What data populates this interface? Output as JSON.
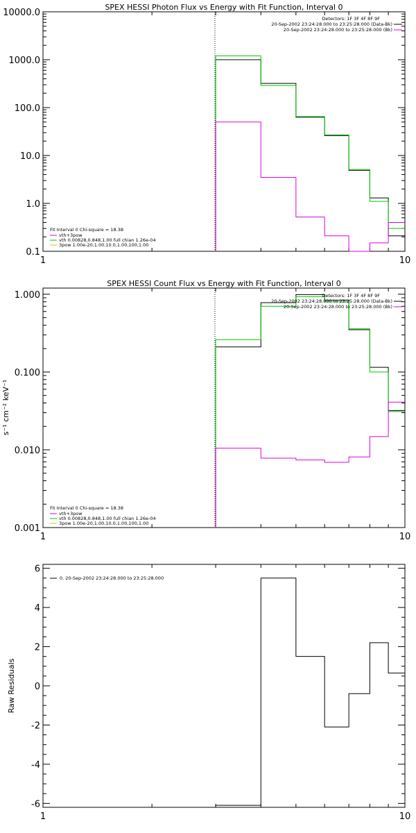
{
  "chart_data": [
    {
      "type": "line",
      "title": "SPEX HESSI Photon Flux vs Energy with Fit Function, Interval 0",
      "x_scale": "log",
      "y_scale": "log",
      "xlim": [
        1,
        10
      ],
      "ylim": [
        0.1,
        10000
      ],
      "x_tick_labels": [
        "1",
        "10"
      ],
      "y_tick_labels": [
        "0.1",
        "1.0",
        "10.0",
        "100.0",
        "1000.0",
        "10000.0"
      ],
      "marker_x": 3,
      "legend_top_right": [
        "Detectors: 1F 3F 4F 8F 9F",
        "20-Sep-2002 23:24:28.000 to 23:25:28.000 (Data-Bk)",
        "20-Sep-2002 23:24:28.000 to 23:25:28.000 (Bk)"
      ],
      "fit_info": [
        "Fit Interval 0   Chi-square = 18.38",
        "vth+3pow",
        "vth 0.00828,0.848,1.00  full chian 1.26e-04",
        "3pow 1.00e-20,1.00,10.0,1.00,100,1.00"
      ],
      "bin_edges": [
        3,
        3.5,
        4,
        4.5,
        5,
        5.5,
        6,
        6.5,
        7,
        7.5,
        8,
        8.5,
        9,
        9.5,
        10
      ],
      "series": [
        {
          "name": "20-Sep-2002 23:24:28.000 to 23:25:28.000 (Data-Bk)",
          "color": "#000000",
          "values": [
            1000,
            1000,
            320,
            320,
            63,
            63,
            26,
            26,
            4.9,
            4.9,
            1.3,
            1.3,
            0.21,
            0.21
          ]
        },
        {
          "name": "vth+3pow",
          "color": "#00cc00",
          "values": [
            1200,
            1200,
            290,
            290,
            65,
            65,
            27,
            27,
            5.1,
            5.1,
            1.1,
            1.1,
            0.3,
            0.3
          ]
        },
        {
          "name": "20-Sep-2002 23:24:28.000 to 23:25:28.000 (Bk)",
          "color": "#dd00dd",
          "values": [
            50,
            50,
            3.5,
            3.5,
            0.52,
            0.52,
            0.21,
            0.21,
            0.1,
            0.1,
            0.15,
            0.15,
            0.4,
            0.4
          ]
        }
      ]
    },
    {
      "type": "line",
      "title": "SPEX HESSI Count Flux vs Energy with Fit Function, Interval 0",
      "x_scale": "log",
      "y_scale": "log",
      "xlim": [
        1,
        10
      ],
      "ylim": [
        0.001,
        1.2
      ],
      "x_tick_labels": [
        "1",
        "10"
      ],
      "y_tick_labels": [
        "0.001",
        "0.010",
        "0.100",
        "1.000"
      ],
      "ylabel": "s⁻¹ cm⁻² keV⁻¹",
      "marker_x": 3,
      "legend_top_right": [
        "Detectors: 1F 3F 4F 8F 9F",
        "20-Sep-2002 23:24:28.000 to 23:25:28.000 (Data-Bk)",
        "20-Sep-2002 23:24:28.000 to 23:25:28.000 (Bk)"
      ],
      "fit_info": [
        "Fit Interval 0   Chi-square = 18.38",
        "vth+3pow",
        "vth 0.00828,0.848,1.00  full chian 1.26e-04",
        "3pow 1.00e-20,1.00,10.0,1.00,100,1.00"
      ],
      "bin_edges": [
        3,
        3.5,
        4,
        4.5,
        5,
        5.5,
        6,
        6.5,
        7,
        7.5,
        8,
        8.5,
        9,
        9.5,
        10
      ],
      "series": [
        {
          "name": "20-Sep-2002 23:24:28.000 to 23:25:28.000 (Data-Bk)",
          "color": "#000000",
          "values": [
            0.21,
            0.21,
            0.78,
            0.78,
            0.99,
            0.99,
            0.84,
            0.84,
            0.35,
            0.35,
            0.115,
            0.115,
            0.032,
            0.032
          ]
        },
        {
          "name": "vth+3pow",
          "color": "#00cc00",
          "values": [
            0.26,
            0.26,
            0.7,
            0.7,
            0.93,
            0.93,
            0.8,
            0.8,
            0.36,
            0.36,
            0.1,
            0.1,
            0.031,
            0.031
          ]
        },
        {
          "name": "20-Sep-2002 23:24:28.000 to 23:25:28.000 (Bk)",
          "color": "#dd00dd",
          "values": [
            0.0105,
            0.0105,
            0.0078,
            0.0078,
            0.0074,
            0.0074,
            0.0069,
            0.0069,
            0.0081,
            0.0081,
            0.0148,
            0.0148,
            0.041,
            0.041
          ]
        }
      ]
    },
    {
      "type": "line",
      "title": "",
      "x_scale": "log",
      "y_scale": "linear",
      "xlim": [
        1,
        10
      ],
      "ylim": [
        -6.2,
        6.2
      ],
      "x_tick_labels": [
        "1",
        "10"
      ],
      "y_ticks": [
        -6,
        -4,
        -2,
        0,
        2,
        4,
        6
      ],
      "y_tick_labels": [
        "-6",
        "-4",
        "-2",
        "0",
        "2",
        "4",
        "6"
      ],
      "ylabel": "Raw Residuals",
      "legend": [
        "0. 20-Sep-2002 23:24:28.000 to 23:25:28.000"
      ],
      "bin_edges": [
        3,
        3.5,
        4,
        4.5,
        5,
        5.5,
        6,
        6.5,
        7,
        7.5,
        8,
        8.5,
        9,
        9.5,
        10
      ],
      "series": [
        {
          "name": "0. 20-Sep-2002 23:24:28.000 to 23:25:28.000",
          "color": "#000000",
          "values": [
            -6.1,
            -6.1,
            5.5,
            5.5,
            1.5,
            1.5,
            -2.1,
            -2.1,
            -0.4,
            -0.4,
            2.2,
            2.2,
            0.65,
            0.65
          ]
        }
      ]
    }
  ]
}
